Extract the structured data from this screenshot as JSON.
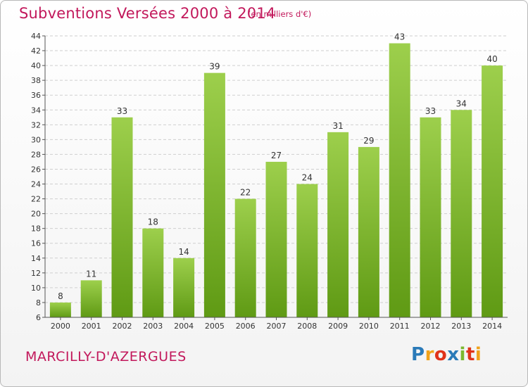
{
  "header": {
    "title": "Subventions Versées 2000 à 2014",
    "subtitle": "(en milliers d'€)"
  },
  "footer": {
    "commune": "MARCILLY-D'AZERGUES",
    "logo_letters": [
      {
        "ch": "P",
        "color": "#2a7ab8"
      },
      {
        "ch": "r",
        "color": "#f0a21a"
      },
      {
        "ch": "o",
        "color": "#e0331a"
      },
      {
        "ch": "x",
        "color": "#2a7ab8"
      },
      {
        "ch": "i",
        "color": "#7cb82f"
      },
      {
        "ch": "t",
        "color": "#e0331a"
      },
      {
        "ch": "i",
        "color": "#f0a21a"
      }
    ]
  },
  "colors": {
    "bar_top": "#9dcf4c",
    "bar_bottom": "#5f9a14",
    "accent": "#c2185b",
    "grid": "#cfcfcf"
  },
  "chart_data": {
    "type": "bar",
    "categories": [
      "2000",
      "2001",
      "2002",
      "2003",
      "2004",
      "2005",
      "2006",
      "2007",
      "2008",
      "2009",
      "2010",
      "2011",
      "2012",
      "2013",
      "2014"
    ],
    "values": [
      8,
      11,
      33,
      18,
      14,
      39,
      22,
      27,
      24,
      31,
      29,
      43,
      33,
      34,
      40
    ],
    "ylim": [
      6,
      44
    ],
    "yticks": [
      6,
      8,
      10,
      12,
      14,
      16,
      18,
      20,
      22,
      24,
      26,
      28,
      30,
      32,
      34,
      36,
      38,
      40,
      42,
      44
    ],
    "title": "Subventions Versées 2000 à 2014",
    "xlabel": "",
    "ylabel": "",
    "grid": true,
    "legend": "none"
  }
}
